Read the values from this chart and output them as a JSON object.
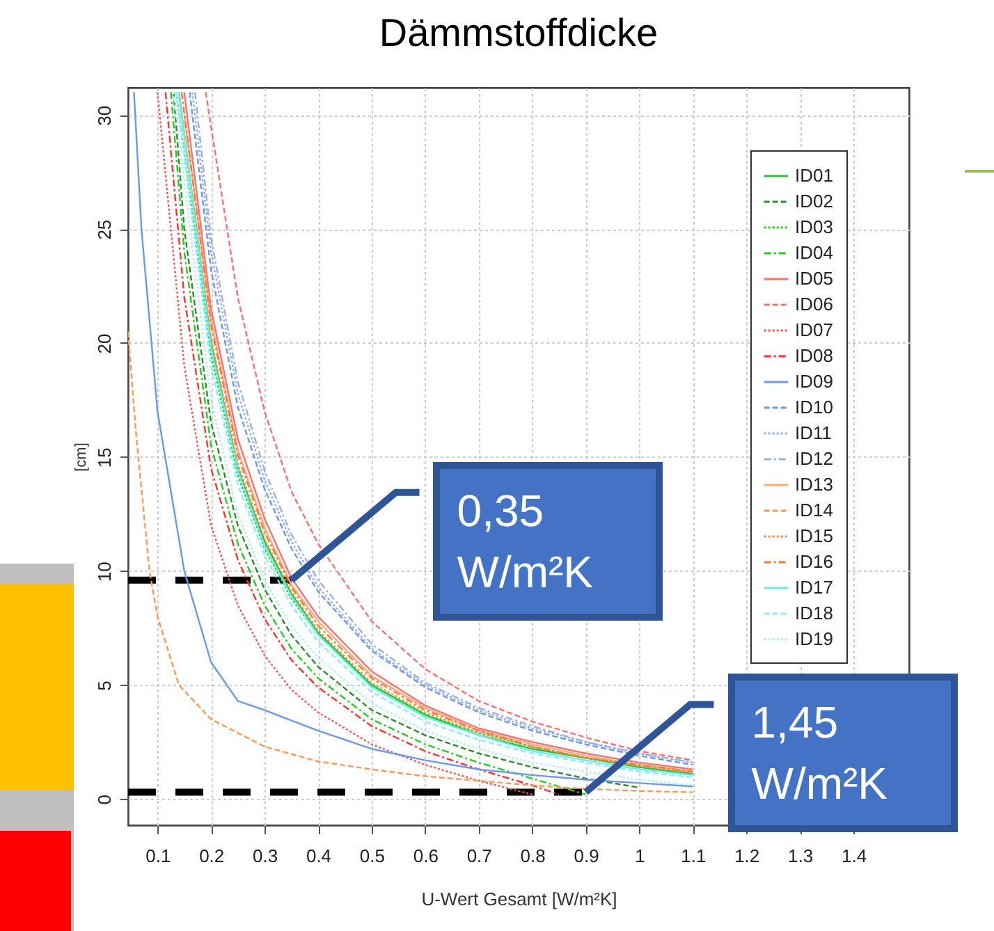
{
  "chart_data": {
    "type": "line",
    "title": "Dämmstoffdicke",
    "xlabel": "U-Wert Gesamt [W/m²K]",
    "ylabel": "[cm]",
    "xlim": [
      0.045,
      1.504
    ],
    "ylim": [
      -1.15,
      31.2
    ],
    "xticks": [
      0.1,
      0.2,
      0.3,
      0.4,
      0.5,
      0.6,
      0.7,
      0.8,
      0.9,
      1,
      1.1,
      1.2,
      1.3,
      1.4
    ],
    "yticks": [
      0,
      5,
      10,
      15,
      20,
      25,
      30
    ],
    "grid": true,
    "legend": "top right",
    "series": [
      {
        "name": "ID01",
        "color": "#33bb33",
        "line_style": "solid",
        "x": [
          0.14,
          0.2,
          0.25,
          0.3,
          0.35,
          0.4,
          0.5,
          0.6,
          0.7,
          0.8,
          0.9,
          1.0,
          1.1
        ],
        "values": [
          31,
          20,
          14.5,
          11.3,
          9.0,
          7.3,
          5.0,
          3.7,
          2.8,
          2.2,
          1.8,
          1.4,
          1.1
        ]
      },
      {
        "name": "ID02",
        "color": "#2e8b2e",
        "line_style": "dashed",
        "x": [
          0.13,
          0.15,
          0.2,
          0.25,
          0.3,
          0.35,
          0.4,
          0.5,
          0.6,
          0.7,
          0.8,
          0.9,
          1.0
        ],
        "values": [
          31,
          25,
          16.5,
          12,
          9.2,
          7.2,
          5.8,
          3.9,
          2.8,
          2.0,
          1.4,
          0.9,
          0.5
        ]
      },
      {
        "name": "ID03",
        "color": "#00dd00",
        "line_style": "dotted",
        "x": [
          0.135,
          0.2,
          0.25,
          0.3,
          0.35,
          0.4,
          0.5,
          0.6,
          0.7,
          0.8,
          0.9,
          1.0,
          1.1
        ],
        "values": [
          31,
          19.5,
          14.2,
          11,
          8.8,
          7.2,
          5.0,
          3.7,
          2.9,
          2.3,
          1.8,
          1.5,
          1.2
        ]
      },
      {
        "name": "ID04",
        "color": "#22cc22",
        "line_style": "dashdot",
        "x": [
          0.125,
          0.15,
          0.2,
          0.25,
          0.3,
          0.35,
          0.4,
          0.5,
          0.6,
          0.7,
          0.8,
          0.9
        ],
        "values": [
          31,
          24,
          15.5,
          11.2,
          8.5,
          6.6,
          5.3,
          3.5,
          2.4,
          1.6,
          0.9,
          0.2
        ]
      },
      {
        "name": "ID05",
        "color": "#ff7070",
        "line_style": "solid",
        "x": [
          0.15,
          0.2,
          0.25,
          0.3,
          0.35,
          0.4,
          0.5,
          0.6,
          0.7,
          0.8,
          0.9,
          1.0,
          1.1
        ],
        "values": [
          31,
          21.5,
          15.8,
          12.3,
          9.7,
          8.0,
          5.6,
          4.1,
          3.1,
          2.5,
          2.0,
          1.6,
          1.3
        ]
      },
      {
        "name": "ID06",
        "color": "#ff7070",
        "line_style": "dashed",
        "x": [
          0.19,
          0.25,
          0.3,
          0.35,
          0.4,
          0.5,
          0.6,
          0.7,
          0.8,
          0.9,
          1.0,
          1.1
        ],
        "values": [
          31,
          22,
          17,
          13.5,
          11.2,
          7.8,
          5.7,
          4.3,
          3.4,
          2.7,
          2.1,
          1.7
        ]
      },
      {
        "name": "ID07",
        "color": "#ff5050",
        "line_style": "dotted",
        "x": [
          0.1,
          0.15,
          0.2,
          0.25,
          0.3,
          0.35,
          0.4,
          0.5,
          0.6,
          0.7,
          0.8
        ],
        "values": [
          31,
          19,
          12,
          8.5,
          6.3,
          4.8,
          3.8,
          2.4,
          1.5,
          0.8,
          0.2
        ]
      },
      {
        "name": "ID08",
        "color": "#ff3030",
        "line_style": "dashdot",
        "x": [
          0.115,
          0.15,
          0.2,
          0.25,
          0.3,
          0.35,
          0.4,
          0.5,
          0.6,
          0.7,
          0.8,
          0.85
        ],
        "values": [
          31,
          22,
          14.5,
          10.5,
          7.9,
          6.1,
          4.9,
          3.2,
          2.1,
          1.3,
          0.6,
          0.2
        ]
      },
      {
        "name": "ID09",
        "color": "#6a98ee",
        "line_style": "solid",
        "x": [
          0.056,
          0.07,
          0.1,
          0.15,
          0.2,
          0.25,
          0.3,
          0.4,
          0.5,
          0.6,
          0.7,
          0.8,
          0.9,
          1.0,
          1.1
        ],
        "values": [
          31,
          25,
          17,
          10,
          6.0,
          4.3,
          3.9,
          3.0,
          2.2,
          1.7,
          1.3,
          1.05,
          0.85,
          0.7,
          0.55
        ]
      },
      {
        "name": "ID10",
        "color": "#6a98ee",
        "line_style": "dashed",
        "x": [
          0.16,
          0.2,
          0.25,
          0.3,
          0.35,
          0.4,
          0.5,
          0.6,
          0.7,
          0.8,
          0.9,
          1.0,
          1.1
        ],
        "values": [
          31,
          23.2,
          17.2,
          13.6,
          11,
          9.1,
          6.5,
          4.9,
          3.8,
          3.0,
          2.4,
          1.9,
          1.5
        ]
      },
      {
        "name": "ID11",
        "color": "#8fa8ee",
        "line_style": "dotted",
        "x": [
          0.165,
          0.2,
          0.25,
          0.3,
          0.35,
          0.4,
          0.5,
          0.6,
          0.7,
          0.8,
          0.9,
          1.0,
          1.1
        ],
        "values": [
          31,
          24,
          17.8,
          14,
          11.3,
          9.3,
          6.6,
          5.0,
          3.9,
          3.1,
          2.5,
          2.0,
          1.6
        ]
      },
      {
        "name": "ID12",
        "color": "#9ab0e0",
        "line_style": "dashdot",
        "x": [
          0.17,
          0.2,
          0.25,
          0.3,
          0.35,
          0.4,
          0.5,
          0.6,
          0.7,
          0.8,
          0.9,
          1.0,
          1.1
        ],
        "values": [
          31,
          24.6,
          18.3,
          14.4,
          11.6,
          9.6,
          6.8,
          5.1,
          4.0,
          3.2,
          2.5,
          2.0,
          1.6
        ]
      },
      {
        "name": "ID13",
        "color": "#ffaa77",
        "line_style": "solid",
        "x": [
          0.15,
          0.2,
          0.25,
          0.3,
          0.35,
          0.4,
          0.5,
          0.6,
          0.7,
          0.8,
          0.9,
          1.0,
          1.1
        ],
        "values": [
          30,
          21,
          15.3,
          11.9,
          9.4,
          7.8,
          5.4,
          4.0,
          3.0,
          2.4,
          1.9,
          1.5,
          1.2
        ]
      },
      {
        "name": "ID14",
        "color": "#ff9955",
        "line_style": "dashed",
        "x": [
          0.045,
          0.06,
          0.085,
          0.1,
          0.14,
          0.2,
          0.3,
          0.4,
          0.5,
          0.6,
          0.7,
          0.8,
          0.9,
          1.0,
          1.1
        ],
        "values": [
          20.5,
          16,
          10,
          8,
          5,
          3.5,
          2.3,
          1.65,
          1.3,
          1.0,
          0.8,
          0.6,
          0.45,
          0.35,
          0.3
        ]
      },
      {
        "name": "ID15",
        "color": "#ff8844",
        "line_style": "dotted",
        "x": [
          0.14,
          0.2,
          0.25,
          0.3,
          0.35,
          0.4,
          0.5,
          0.6,
          0.7,
          0.8,
          0.9,
          1.0,
          1.1
        ],
        "values": [
          31,
          20.2,
          14.7,
          11.4,
          9.1,
          7.4,
          5.1,
          3.8,
          2.9,
          2.3,
          1.8,
          1.45,
          1.15
        ]
      },
      {
        "name": "ID16",
        "color": "#ff7733",
        "line_style": "dashdot",
        "x": [
          0.145,
          0.2,
          0.25,
          0.3,
          0.35,
          0.4,
          0.5,
          0.6,
          0.7,
          0.8,
          0.9,
          1.0,
          1.1
        ],
        "values": [
          31,
          20.8,
          15.1,
          11.7,
          9.3,
          7.6,
          5.3,
          3.9,
          3.0,
          2.3,
          1.8,
          1.5,
          1.2
        ]
      },
      {
        "name": "ID17",
        "color": "#66eeee",
        "line_style": "solid",
        "x": [
          0.14,
          0.2,
          0.25,
          0.3,
          0.35,
          0.4,
          0.5,
          0.6,
          0.7,
          0.8,
          0.9,
          1.0,
          1.1
        ],
        "values": [
          31,
          19.8,
          14.4,
          11.1,
          8.9,
          7.2,
          4.9,
          3.6,
          2.8,
          2.1,
          1.7,
          1.3,
          1.05
        ]
      },
      {
        "name": "ID18",
        "color": "#88eeff",
        "line_style": "dashed",
        "x": [
          0.135,
          0.2,
          0.25,
          0.3,
          0.35,
          0.4,
          0.5,
          0.6,
          0.7,
          0.8,
          0.9,
          1.0,
          1.1
        ],
        "values": [
          31,
          19,
          13.8,
          10.7,
          8.5,
          6.9,
          4.7,
          3.4,
          2.6,
          2.0,
          1.6,
          1.2,
          0.95
        ]
      },
      {
        "name": "ID19",
        "color": "#aaeeff",
        "line_style": "dotted",
        "x": [
          0.13,
          0.2,
          0.25,
          0.3,
          0.35,
          0.4,
          0.5,
          0.6,
          0.7,
          0.8,
          0.9,
          1.0,
          1.1
        ],
        "values": [
          31,
          17.5,
          12.5,
          9.6,
          7.6,
          6.2,
          4.2,
          3.0,
          2.2,
          1.6,
          1.2,
          0.85,
          0.6
        ]
      }
    ],
    "ref_lines": [
      {
        "axis": "y",
        "value": 9.6,
        "color": "#000000",
        "line_style": "dashed"
      },
      {
        "axis": "y",
        "value": 0.3,
        "color": "#000000",
        "line_style": "dashed"
      }
    ],
    "annotations": [
      {
        "text": "0,35 W/m²K",
        "x": 0.35,
        "y": 9.6
      },
      {
        "text": "1,45 W/m²K",
        "x": 0.9,
        "y": 0.3
      }
    ]
  }
}
